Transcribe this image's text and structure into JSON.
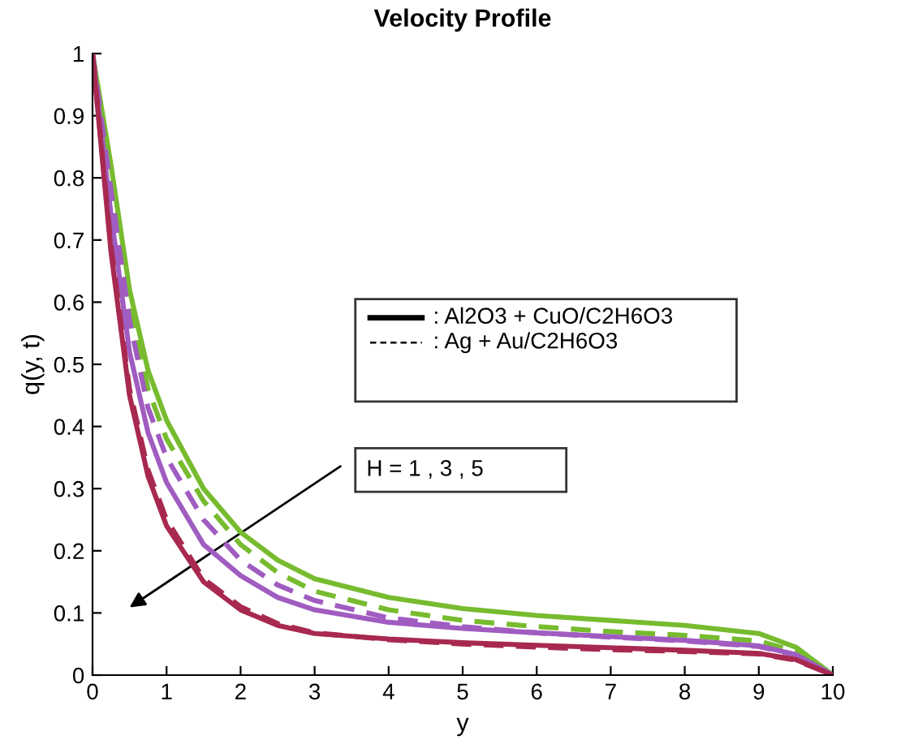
{
  "chart_data": {
    "type": "line",
    "title": "Velocity Profile",
    "xlabel": "y",
    "ylabel": "q(y, t)",
    "x": [
      0,
      0.25,
      0.5,
      0.75,
      1,
      1.5,
      2,
      2.5,
      3,
      4,
      5,
      6,
      7,
      8,
      9,
      9.5,
      10
    ],
    "series": [
      {
        "color": "#77bb2f",
        "line_style": "solid",
        "values": [
          1,
          0.82,
          0.62,
          0.49,
          0.41,
          0.3,
          0.23,
          0.185,
          0.155,
          0.125,
          0.107,
          0.096,
          0.088,
          0.08,
          0.067,
          0.045,
          0
        ]
      },
      {
        "color": "#77bb2f",
        "line_style": "dashed",
        "values": [
          1,
          0.8,
          0.6,
          0.46,
          0.38,
          0.28,
          0.21,
          0.165,
          0.135,
          0.105,
          0.088,
          0.078,
          0.07,
          0.064,
          0.055,
          0.038,
          0
        ]
      },
      {
        "color": "#a05cc0",
        "line_style": "solid",
        "values": [
          1,
          0.74,
          0.52,
          0.39,
          0.31,
          0.21,
          0.16,
          0.125,
          0.105,
          0.085,
          0.075,
          0.068,
          0.062,
          0.056,
          0.047,
          0.033,
          0
        ]
      },
      {
        "color": "#a05cc0",
        "line_style": "dashed",
        "values": [
          1,
          0.78,
          0.57,
          0.43,
          0.35,
          0.25,
          0.185,
          0.145,
          0.12,
          0.092,
          0.078,
          0.068,
          0.061,
          0.055,
          0.046,
          0.032,
          0
        ]
      },
      {
        "color": "#a8294f",
        "line_style": "solid",
        "values": [
          1,
          0.68,
          0.45,
          0.32,
          0.24,
          0.15,
          0.105,
          0.08,
          0.067,
          0.058,
          0.052,
          0.048,
          0.044,
          0.04,
          0.035,
          0.025,
          0
        ]
      },
      {
        "color": "#a8294f",
        "line_style": "dashed",
        "values": [
          1,
          0.69,
          0.46,
          0.33,
          0.25,
          0.155,
          0.11,
          0.083,
          0.068,
          0.057,
          0.05,
          0.045,
          0.041,
          0.038,
          0.034,
          0.024,
          0
        ]
      }
    ],
    "xlim": [
      0,
      10
    ],
    "xticks": [
      0,
      1,
      2,
      3,
      4,
      5,
      6,
      7,
      8,
      9,
      10
    ],
    "ylim": [
      0,
      1
    ],
    "yticks": [
      0,
      0.1,
      0.2,
      0.3,
      0.4,
      0.5,
      0.6,
      0.7,
      0.8,
      0.9,
      1
    ],
    "grid": false,
    "annotations": [
      ": Al2O3 + CuO/C2H6O3",
      ": Ag + Au/C2H6O3",
      "H = 1 , 3 , 5"
    ]
  }
}
